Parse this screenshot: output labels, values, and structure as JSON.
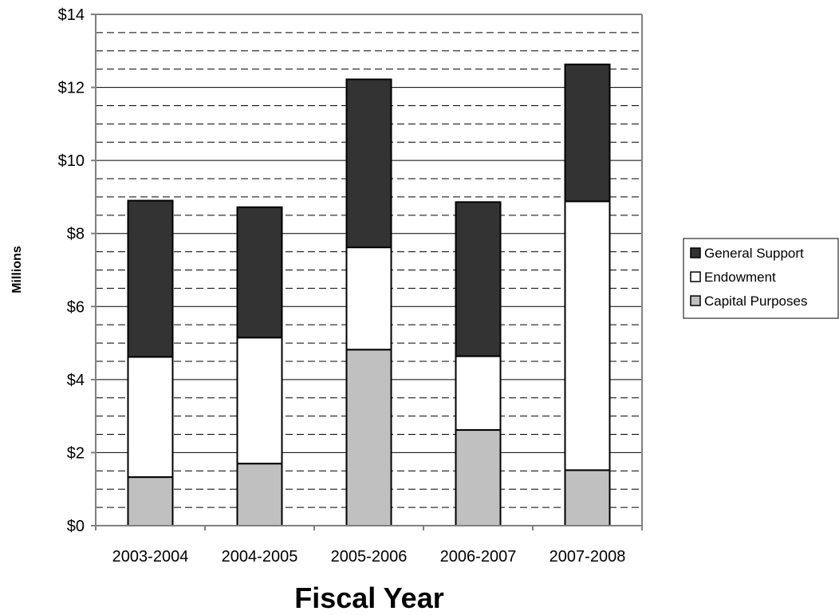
{
  "chart_data": {
    "type": "bar",
    "stacked": true,
    "categories": [
      "2003-2004",
      "2004-2005",
      "2005-2006",
      "2006-2007",
      "2007-2008"
    ],
    "series": [
      {
        "name": "Capital Purposes",
        "color": "#c0c0c0",
        "values": [
          1.33,
          1.7,
          4.82,
          2.62,
          1.52
        ]
      },
      {
        "name": "Endowment",
        "color": "#ffffff",
        "values": [
          3.29,
          3.45,
          2.8,
          2.02,
          7.36
        ]
      },
      {
        "name": "General Support",
        "color": "#333333",
        "values": [
          4.28,
          3.57,
          4.6,
          4.22,
          3.75
        ]
      }
    ],
    "xlabel": "Fiscal Year",
    "ylabel": "Millions",
    "ylim": [
      0,
      14
    ],
    "y_tick_labels": [
      "$0",
      "$2",
      "$4",
      "$6",
      "$8",
      "$10",
      "$12",
      "$14"
    ],
    "grid": {
      "major": "solid",
      "minor": "dashed"
    },
    "legend": {
      "placement": "right",
      "order": [
        "General Support",
        "Endowment",
        "Capital Purposes"
      ]
    }
  }
}
